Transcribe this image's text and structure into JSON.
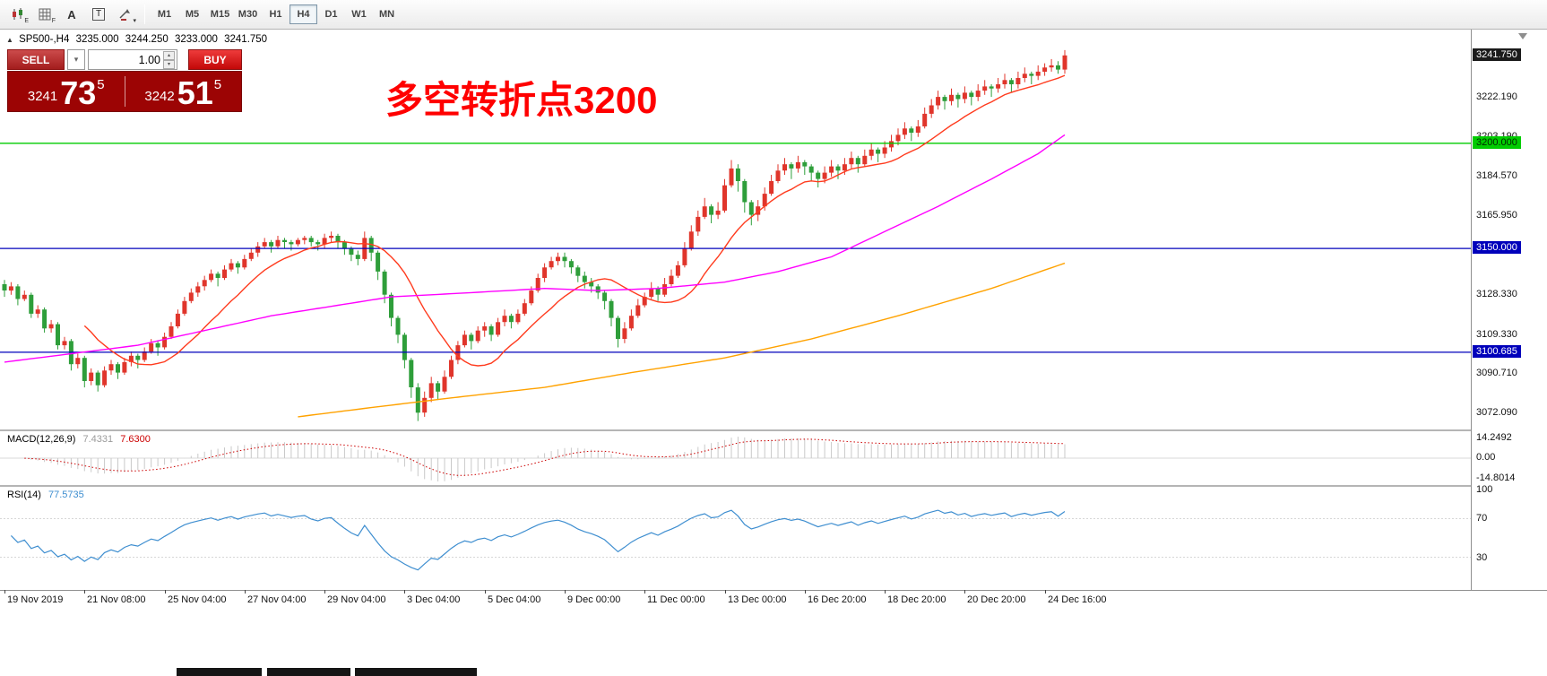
{
  "toolbar": {
    "text_tool_label": "A",
    "textbox_tool_label": "T",
    "icon_sub_e": "E",
    "icon_sub_f": "F",
    "arrows_caret": "▾",
    "timeframes": [
      "M1",
      "M5",
      "M15",
      "M30",
      "H1",
      "H4",
      "D1",
      "W1",
      "MN"
    ],
    "active_timeframe": "H4"
  },
  "chart_header": {
    "collapse_marker": "▲",
    "symbol": "SP500-,H4",
    "open": "3235.000",
    "high": "3244.250",
    "low": "3233.000",
    "close": "3241.750"
  },
  "trade_panel": {
    "sell_label": "SELL",
    "buy_label": "BUY",
    "volume": "1.00",
    "bid_small": "3241",
    "bid_big": "73",
    "bid_sup": "5",
    "ask_small": "3242",
    "ask_big": "51",
    "ask_sup": "5"
  },
  "annotation": {
    "text": "多空转折点3200",
    "color": "#ff0000"
  },
  "price_axis": {
    "labels": [
      {
        "text": "3222.190",
        "value": 3222.19
      },
      {
        "text": "3203.190",
        "value": 3203.19
      },
      {
        "text": "3184.570",
        "value": 3184.57
      },
      {
        "text": "3165.950",
        "value": 3165.95
      },
      {
        "text": "3128.330",
        "value": 3128.33
      },
      {
        "text": "3109.330",
        "value": 3109.33
      },
      {
        "text": "3090.710",
        "value": 3090.71
      },
      {
        "text": "3072.090",
        "value": 3072.09
      }
    ],
    "badges": [
      {
        "text": "3241.750",
        "value": 3241.75,
        "type": "last"
      },
      {
        "text": "3200.000",
        "value": 3200.0,
        "type": "green"
      },
      {
        "text": "3150.000",
        "value": 3150.0,
        "type": "blue"
      },
      {
        "text": "3100.685",
        "value": 3100.685,
        "type": "blue"
      }
    ]
  },
  "macd_panel": {
    "name": "MACD(12,26,9)",
    "main_value": "7.4331",
    "signal_value": "7.6300",
    "axis": [
      {
        "text": "14.2492",
        "pos": "top"
      },
      {
        "text": "0.00",
        "pos": "zero"
      },
      {
        "text": "-14.8014",
        "pos": "bottom"
      }
    ]
  },
  "rsi_panel": {
    "name": "RSI(14)",
    "value": "77.5735",
    "axis": [
      {
        "text": "100",
        "value": 100
      },
      {
        "text": "70",
        "value": 70
      },
      {
        "text": "30",
        "value": 30
      }
    ],
    "levels": [
      70,
      30
    ]
  },
  "time_axis": {
    "labels": [
      {
        "i": 0,
        "text": "19 Nov 2019"
      },
      {
        "i": 12,
        "text": "21 Nov 08:00"
      },
      {
        "i": 24,
        "text": "25 Nov 04:00"
      },
      {
        "i": 36,
        "text": "27 Nov 04:00"
      },
      {
        "i": 48,
        "text": "29 Nov 04:00"
      },
      {
        "i": 60,
        "text": "3 Dec 04:00"
      },
      {
        "i": 72,
        "text": "5 Dec 04:00"
      },
      {
        "i": 84,
        "text": "9 Dec 00:00"
      },
      {
        "i": 96,
        "text": "11 Dec 00:00"
      },
      {
        "i": 108,
        "text": "13 Dec 00:00"
      },
      {
        "i": 120,
        "text": "16 Dec 20:00"
      },
      {
        "i": 132,
        "text": "18 Dec 20:00"
      },
      {
        "i": 144,
        "text": "20 Dec 20:00"
      },
      {
        "i": 156,
        "text": "24 Dec 16:00"
      }
    ]
  },
  "chart_data": {
    "type": "candlestick",
    "symbol": "SP500-",
    "timeframe": "H4",
    "price_range": {
      "max": 3254,
      "min": 3064
    },
    "up_color": "#e0352b",
    "down_color": "#2e9e3a",
    "hlines": [
      {
        "value": 3200.0,
        "color": "#00cc00"
      },
      {
        "value": 3150.0,
        "color": "#0000bb"
      },
      {
        "value": 3100.685,
        "color": "#0000bb"
      }
    ],
    "ma_fast": {
      "period": 13,
      "color": "#ff3b1e"
    },
    "ma_mid": {
      "color": "#ff00ff",
      "points": [
        [
          0,
          3096
        ],
        [
          20,
          3104
        ],
        [
          40,
          3118
        ],
        [
          58,
          3127
        ],
        [
          70,
          3129
        ],
        [
          81,
          3131
        ],
        [
          89,
          3130
        ],
        [
          98,
          3131
        ],
        [
          108,
          3134
        ],
        [
          116,
          3139
        ],
        [
          124,
          3146
        ],
        [
          132,
          3158
        ],
        [
          140,
          3170
        ],
        [
          148,
          3183
        ],
        [
          155,
          3195
        ],
        [
          159,
          3204
        ]
      ]
    },
    "ma_slow": {
      "color": "#ffa200",
      "points": [
        [
          44,
          3070
        ],
        [
          54,
          3074
        ],
        [
          67,
          3079
        ],
        [
          81,
          3084
        ],
        [
          94,
          3091
        ],
        [
          108,
          3098
        ],
        [
          121,
          3107
        ],
        [
          134,
          3118
        ],
        [
          148,
          3131
        ],
        [
          159,
          3143
        ]
      ]
    },
    "indicators": {
      "macd": {
        "fast": 12,
        "slow": 26,
        "signal": 9
      },
      "rsi": {
        "period": 14
      }
    },
    "candles": [
      [
        3133,
        3135,
        3127,
        3130
      ],
      [
        3130,
        3134,
        3128,
        3132
      ],
      [
        3132,
        3133,
        3123,
        3126
      ],
      [
        3126,
        3130,
        3125,
        3128
      ],
      [
        3128,
        3129,
        3117,
        3119
      ],
      [
        3119,
        3123,
        3117,
        3121
      ],
      [
        3121,
        3122,
        3110,
        3112
      ],
      [
        3112,
        3116,
        3110,
        3114
      ],
      [
        3114,
        3115,
        3102,
        3104
      ],
      [
        3104,
        3108,
        3102,
        3106
      ],
      [
        3106,
        3107,
        3092,
        3095
      ],
      [
        3095,
        3100,
        3093,
        3098
      ],
      [
        3098,
        3099,
        3084,
        3087
      ],
      [
        3087,
        3093,
        3085,
        3091
      ],
      [
        3091,
        3092,
        3082,
        3085
      ],
      [
        3085,
        3094,
        3084,
        3092
      ],
      [
        3092,
        3097,
        3090,
        3095
      ],
      [
        3095,
        3096,
        3088,
        3091
      ],
      [
        3091,
        3098,
        3090,
        3096
      ],
      [
        3096,
        3101,
        3094,
        3099
      ],
      [
        3099,
        3100,
        3093,
        3097
      ],
      [
        3097,
        3103,
        3096,
        3101
      ],
      [
        3101,
        3107,
        3100,
        3105
      ],
      [
        3105,
        3106,
        3099,
        3103
      ],
      [
        3103,
        3110,
        3102,
        3108
      ],
      [
        3108,
        3115,
        3107,
        3113
      ],
      [
        3113,
        3121,
        3112,
        3119
      ],
      [
        3119,
        3127,
        3118,
        3125
      ],
      [
        3125,
        3131,
        3124,
        3129
      ],
      [
        3129,
        3134,
        3127,
        3132
      ],
      [
        3132,
        3137,
        3130,
        3135
      ],
      [
        3135,
        3140,
        3134,
        3138
      ],
      [
        3138,
        3139,
        3132,
        3136
      ],
      [
        3136,
        3142,
        3135,
        3140
      ],
      [
        3140,
        3145,
        3139,
        3143
      ],
      [
        3143,
        3144,
        3138,
        3141
      ],
      [
        3141,
        3147,
        3140,
        3145
      ],
      [
        3145,
        3150,
        3144,
        3148
      ],
      [
        3148,
        3153,
        3146,
        3151
      ],
      [
        3151,
        3155,
        3150,
        3153
      ],
      [
        3153,
        3154,
        3148,
        3151
      ],
      [
        3151,
        3156,
        3150,
        3154
      ],
      [
        3154,
        3155,
        3150,
        3153
      ],
      [
        3153,
        3154,
        3149,
        3152
      ],
      [
        3152,
        3155,
        3151,
        3154
      ],
      [
        3154,
        3156,
        3152,
        3155
      ],
      [
        3155,
        3156,
        3151,
        3153
      ],
      [
        3153,
        3154,
        3149,
        3152
      ],
      [
        3152,
        3157,
        3150,
        3155
      ],
      [
        3155,
        3158,
        3153,
        3156
      ],
      [
        3156,
        3157,
        3150,
        3153
      ],
      [
        3153,
        3154,
        3147,
        3150
      ],
      [
        3150,
        3151,
        3144,
        3147
      ],
      [
        3147,
        3149,
        3142,
        3145
      ],
      [
        3145,
        3158,
        3144,
        3155
      ],
      [
        3155,
        3156,
        3144,
        3148
      ],
      [
        3148,
        3149,
        3135,
        3139
      ],
      [
        3139,
        3140,
        3124,
        3128
      ],
      [
        3128,
        3129,
        3113,
        3117
      ],
      [
        3117,
        3118,
        3105,
        3109
      ],
      [
        3109,
        3110,
        3093,
        3097
      ],
      [
        3097,
        3098,
        3079,
        3084
      ],
      [
        3084,
        3086,
        3068,
        3072
      ],
      [
        3072,
        3082,
        3070,
        3079
      ],
      [
        3079,
        3089,
        3077,
        3086
      ],
      [
        3086,
        3087,
        3078,
        3082
      ],
      [
        3082,
        3092,
        3081,
        3089
      ],
      [
        3089,
        3099,
        3088,
        3097
      ],
      [
        3097,
        3106,
        3095,
        3104
      ],
      [
        3104,
        3111,
        3103,
        3109
      ],
      [
        3109,
        3110,
        3102,
        3106
      ],
      [
        3106,
        3113,
        3105,
        3111
      ],
      [
        3111,
        3115,
        3108,
        3113
      ],
      [
        3113,
        3114,
        3106,
        3109
      ],
      [
        3109,
        3117,
        3108,
        3115
      ],
      [
        3115,
        3121,
        3113,
        3118
      ],
      [
        3118,
        3119,
        3112,
        3115
      ],
      [
        3115,
        3121,
        3114,
        3119
      ],
      [
        3119,
        3126,
        3118,
        3124
      ],
      [
        3124,
        3132,
        3123,
        3130
      ],
      [
        3130,
        3138,
        3129,
        3136
      ],
      [
        3136,
        3143,
        3134,
        3141
      ],
      [
        3141,
        3146,
        3140,
        3144
      ],
      [
        3144,
        3148,
        3142,
        3146
      ],
      [
        3146,
        3148,
        3141,
        3144
      ],
      [
        3144,
        3145,
        3138,
        3141
      ],
      [
        3141,
        3142,
        3134,
        3137
      ],
      [
        3137,
        3139,
        3131,
        3134
      ],
      [
        3134,
        3136,
        3129,
        3132
      ],
      [
        3132,
        3133,
        3126,
        3129
      ],
      [
        3129,
        3130,
        3121,
        3125
      ],
      [
        3125,
        3126,
        3113,
        3117
      ],
      [
        3117,
        3118,
        3103,
        3107
      ],
      [
        3107,
        3115,
        3105,
        3112
      ],
      [
        3112,
        3121,
        3111,
        3118
      ],
      [
        3118,
        3126,
        3117,
        3123
      ],
      [
        3123,
        3129,
        3122,
        3127
      ],
      [
        3127,
        3134,
        3126,
        3131
      ],
      [
        3131,
        3132,
        3125,
        3128
      ],
      [
        3128,
        3136,
        3127,
        3133
      ],
      [
        3133,
        3140,
        3132,
        3137
      ],
      [
        3137,
        3144,
        3136,
        3142
      ],
      [
        3142,
        3153,
        3141,
        3150
      ],
      [
        3150,
        3161,
        3149,
        3158
      ],
      [
        3158,
        3168,
        3156,
        3165
      ],
      [
        3165,
        3174,
        3164,
        3170
      ],
      [
        3170,
        3171,
        3162,
        3166
      ],
      [
        3166,
        3172,
        3164,
        3168
      ],
      [
        3168,
        3183,
        3167,
        3180
      ],
      [
        3180,
        3192,
        3179,
        3188
      ],
      [
        3188,
        3190,
        3177,
        3182
      ],
      [
        3182,
        3183,
        3167,
        3172
      ],
      [
        3172,
        3173,
        3161,
        3166
      ],
      [
        3166,
        3173,
        3163,
        3170
      ],
      [
        3170,
        3179,
        3168,
        3176
      ],
      [
        3176,
        3185,
        3175,
        3182
      ],
      [
        3182,
        3190,
        3181,
        3187
      ],
      [
        3187,
        3193,
        3185,
        3190
      ],
      [
        3190,
        3191,
        3183,
        3188
      ],
      [
        3188,
        3194,
        3186,
        3191
      ],
      [
        3191,
        3192,
        3185,
        3189
      ],
      [
        3189,
        3190,
        3182,
        3186
      ],
      [
        3186,
        3187,
        3179,
        3183
      ],
      [
        3183,
        3189,
        3181,
        3186
      ],
      [
        3186,
        3192,
        3184,
        3189
      ],
      [
        3189,
        3190,
        3183,
        3187
      ],
      [
        3187,
        3193,
        3185,
        3190
      ],
      [
        3190,
        3196,
        3188,
        3193
      ],
      [
        3193,
        3194,
        3186,
        3190
      ],
      [
        3190,
        3197,
        3189,
        3194
      ],
      [
        3194,
        3200,
        3192,
        3197
      ],
      [
        3197,
        3198,
        3191,
        3195
      ],
      [
        3195,
        3201,
        3193,
        3198
      ],
      [
        3198,
        3204,
        3196,
        3201
      ],
      [
        3201,
        3207,
        3199,
        3204
      ],
      [
        3204,
        3210,
        3202,
        3207
      ],
      [
        3207,
        3208,
        3201,
        3205
      ],
      [
        3205,
        3211,
        3203,
        3208
      ],
      [
        3208,
        3217,
        3207,
        3214
      ],
      [
        3214,
        3221,
        3212,
        3218
      ],
      [
        3218,
        3225,
        3216,
        3222
      ],
      [
        3222,
        3223,
        3216,
        3220
      ],
      [
        3220,
        3226,
        3218,
        3223
      ],
      [
        3223,
        3224,
        3217,
        3221
      ],
      [
        3221,
        3227,
        3219,
        3224
      ],
      [
        3224,
        3225,
        3218,
        3222
      ],
      [
        3222,
        3228,
        3220,
        3225
      ],
      [
        3225,
        3230,
        3223,
        3227
      ],
      [
        3227,
        3228,
        3222,
        3226
      ],
      [
        3226,
        3231,
        3224,
        3228
      ],
      [
        3228,
        3233,
        3226,
        3230
      ],
      [
        3230,
        3231,
        3224,
        3228
      ],
      [
        3228,
        3234,
        3226,
        3231
      ],
      [
        3231,
        3236,
        3229,
        3233
      ],
      [
        3233,
        3234,
        3228,
        3232
      ],
      [
        3232,
        3237,
        3230,
        3234
      ],
      [
        3234,
        3238,
        3232,
        3236
      ],
      [
        3236,
        3240,
        3234,
        3237
      ],
      [
        3237,
        3239,
        3233,
        3235
      ],
      [
        3235,
        3244.25,
        3233,
        3241.75
      ]
    ]
  }
}
